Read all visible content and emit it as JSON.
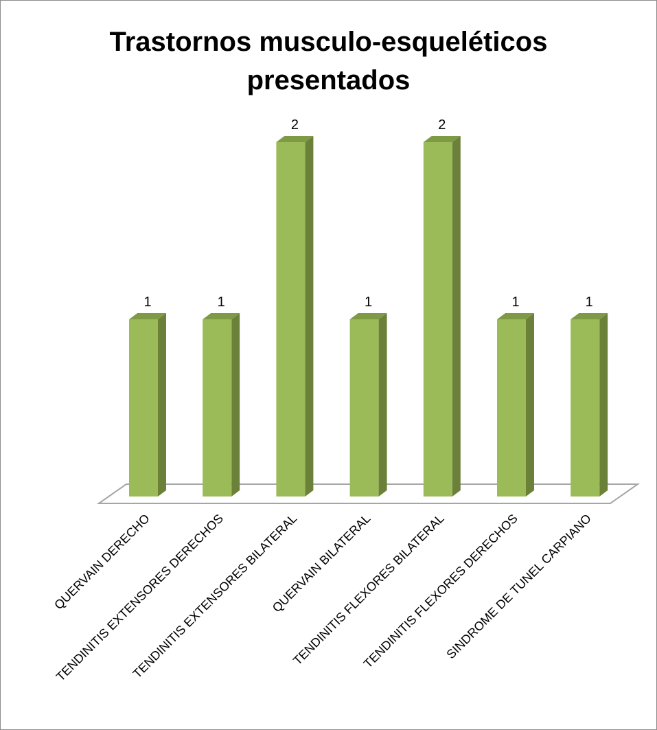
{
  "chart_data": {
    "type": "bar",
    "title_lines": [
      "Trastornos musculo-esqueléticos",
      "presentados"
    ],
    "categories": [
      "QUERVAIN DERECHO",
      "TENDINITIS EXTENSORES DERECHOS",
      "TENDINITIS EXTENSORES BILATERAL",
      "QUERVAIN BILATERAL",
      "TENDINITIS FLEXORES BILATERAL",
      "TENDINITIS FLEXORES DERECHOS",
      "SINDROME DE TUNEL CARPIANO"
    ],
    "values": [
      1,
      1,
      2,
      1,
      2,
      1,
      1
    ],
    "data_labels": [
      "1",
      "1",
      "2",
      "1",
      "2",
      "1",
      "1"
    ],
    "ylim": [
      0,
      2
    ],
    "grid": false,
    "legend": false,
    "style": "3d-column",
    "colors": {
      "front": "#9BBB59",
      "side": "#6B813A",
      "top": "#7E9A45",
      "floor_edge": "#A6A6A6"
    }
  }
}
